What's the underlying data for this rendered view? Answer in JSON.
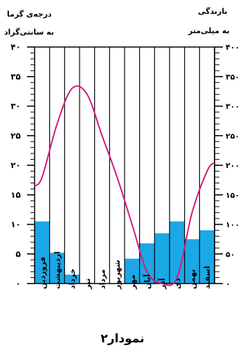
{
  "chart_data": {
    "type": "bar",
    "title": "نمودار۲",
    "left_axis_label_line1": "درجه‌ی گرما",
    "left_axis_label_line2": "به سانتی‌گراد",
    "right_axis_label_line1": "بارندگی",
    "right_axis_label_line2": "به میلی‌متر",
    "temperature_axis": {
      "ylim": [
        0,
        40
      ],
      "ticks": [
        "۰",
        "۵",
        "۱۰",
        "۱۵",
        "۲۰",
        "۲۵",
        "۳۰",
        "۳۵",
        "۴۰"
      ]
    },
    "precipitation_axis": {
      "ylim": [
        0,
        400
      ],
      "ticks": [
        "۰",
        "۵۰",
        "۱۰۰",
        "۱۵۰",
        "۲۰۰",
        "۲۵۰",
        "۳۰۰",
        "۳۵۰",
        "۴۰۰"
      ]
    },
    "categories": [
      "فروردین",
      "اردیبهشت",
      "خرداد",
      "تیر",
      "مرداد",
      "شهریور",
      "مهر",
      "آبان",
      "آذر",
      "دی",
      "بهمن",
      "اسفند"
    ],
    "series": [
      {
        "type": "bar",
        "axis": "precipitation",
        "values": [
          105,
          52,
          15,
          0,
          0,
          0,
          42,
          68,
          85,
          105,
          75,
          90
        ]
      },
      {
        "type": "line",
        "axis": "temperature",
        "values": [
          18,
          27,
          33,
          32,
          25,
          18,
          10,
          2,
          0,
          1,
          12,
          19
        ]
      }
    ],
    "colors": {
      "bar": "#1aa8e6",
      "line": "#d6177d",
      "frame": "#000000"
    }
  }
}
